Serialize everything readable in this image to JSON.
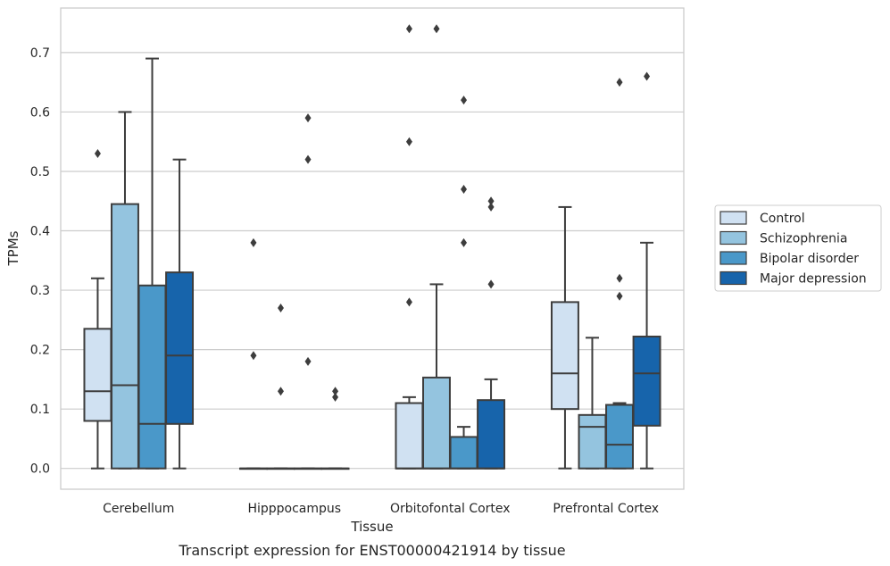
{
  "chart_data": {
    "type": "box",
    "title": "",
    "caption": "Transcript expression for ENST00000421914 by tissue",
    "xlabel": "Tissue",
    "ylabel": "TPMs",
    "ylim": [
      -0.035,
      0.775
    ],
    "yticks": [
      0.0,
      0.1,
      0.2,
      0.3,
      0.4,
      0.5,
      0.6,
      0.7
    ],
    "ytick_labels": [
      "0.0",
      "0.1",
      "0.2",
      "0.3",
      "0.4",
      "0.5",
      "0.6",
      "0.7"
    ],
    "grid": "horizontal",
    "legend_position": "right",
    "categories": [
      "Cerebellum",
      "Hipppocampus",
      "Orbitofontal Cortex",
      "Prefrontal Cortex"
    ],
    "series": [
      {
        "name": "Control",
        "color": "#d0e1f2",
        "boxes": [
          {
            "min": 0.0,
            "q1": 0.08,
            "median": 0.13,
            "q3": 0.235,
            "max": 0.32,
            "outliers": [
              0.53
            ]
          },
          {
            "min": 0.0,
            "q1": 0.0,
            "median": 0.0,
            "q3": 0.0,
            "max": 0.0,
            "outliers": [
              0.38,
              0.19
            ]
          },
          {
            "min": 0.0,
            "q1": 0.0,
            "median": 0.0,
            "q3": 0.11,
            "max": 0.12,
            "outliers": [
              0.55,
              0.28,
              0.74
            ]
          },
          {
            "min": 0.0,
            "q1": 0.1,
            "median": 0.16,
            "q3": 0.28,
            "max": 0.44,
            "outliers": []
          }
        ]
      },
      {
        "name": "Schizophrenia",
        "color": "#94c4df",
        "boxes": [
          {
            "min": 0.0,
            "q1": 0.0,
            "median": 0.14,
            "q3": 0.445,
            "max": 0.6,
            "outliers": []
          },
          {
            "min": 0.0,
            "q1": 0.0,
            "median": 0.0,
            "q3": 0.0,
            "max": 0.0,
            "outliers": [
              0.27,
              0.13
            ]
          },
          {
            "min": 0.0,
            "q1": 0.0,
            "median": 0.0,
            "q3": 0.153,
            "max": 0.31,
            "outliers": [
              0.74
            ]
          },
          {
            "min": 0.0,
            "q1": 0.0,
            "median": 0.07,
            "q3": 0.09,
            "max": 0.22,
            "outliers": []
          }
        ]
      },
      {
        "name": "Bipolar disorder",
        "color": "#4a98c9",
        "boxes": [
          {
            "min": 0.0,
            "q1": 0.0,
            "median": 0.075,
            "q3": 0.308,
            "max": 0.69,
            "outliers": []
          },
          {
            "min": 0.0,
            "q1": 0.0,
            "median": 0.0,
            "q3": 0.0,
            "max": 0.0,
            "outliers": [
              0.59,
              0.52,
              0.18
            ]
          },
          {
            "min": 0.0,
            "q1": 0.0,
            "median": 0.0,
            "q3": 0.053,
            "max": 0.07,
            "outliers": [
              0.62,
              0.47,
              0.38
            ]
          },
          {
            "min": 0.0,
            "q1": 0.0,
            "median": 0.04,
            "q3": 0.107,
            "max": 0.11,
            "outliers": [
              0.65,
              0.32,
              0.29
            ]
          }
        ]
      },
      {
        "name": "Major depression",
        "color": "#1764ab",
        "boxes": [
          {
            "min": 0.0,
            "q1": 0.075,
            "median": 0.19,
            "q3": 0.33,
            "max": 0.52,
            "outliers": []
          },
          {
            "min": 0.0,
            "q1": 0.0,
            "median": 0.0,
            "q3": 0.0,
            "max": 0.0,
            "outliers": [
              0.13,
              0.12
            ]
          },
          {
            "min": 0.0,
            "q1": 0.0,
            "median": 0.0,
            "q3": 0.115,
            "max": 0.15,
            "outliers": [
              0.45,
              0.44,
              0.31
            ]
          },
          {
            "min": 0.0,
            "q1": 0.072,
            "median": 0.16,
            "q3": 0.222,
            "max": 0.38,
            "outliers": [
              0.66
            ]
          }
        ]
      }
    ]
  }
}
